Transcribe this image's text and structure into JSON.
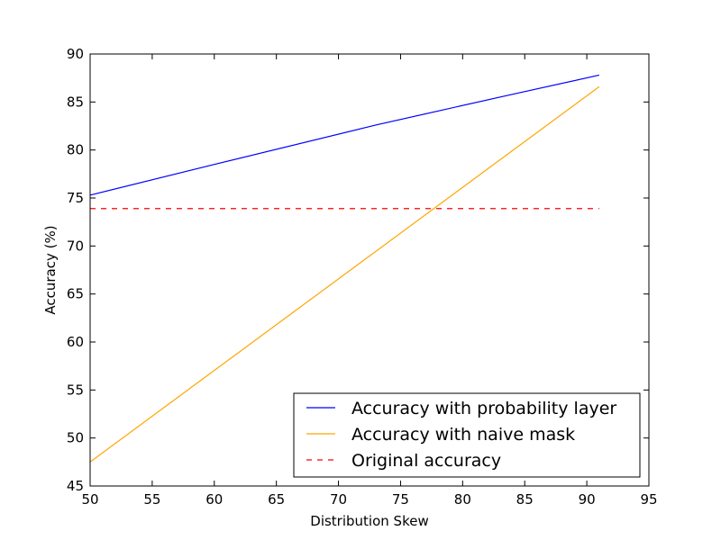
{
  "chart_data": {
    "type": "line",
    "xlabel": "Distribution Skew",
    "ylabel": "Accuracy (%)",
    "xlim": [
      50,
      95
    ],
    "ylim": [
      45,
      90
    ],
    "xticks": [
      50,
      55,
      60,
      65,
      70,
      75,
      80,
      85,
      90,
      95
    ],
    "yticks": [
      45,
      50,
      55,
      60,
      65,
      70,
      75,
      80,
      85,
      90
    ],
    "grid": false,
    "legend_position": "lower-right",
    "series": [
      {
        "name": "Accuracy with probability layer",
        "color": "#0000ff",
        "style": "solid",
        "x": [
          50,
          60,
          73,
          84,
          91
        ],
        "y": [
          75.3,
          78.5,
          82.6,
          85.8,
          87.8
        ]
      },
      {
        "name": "Accuracy with naive mask",
        "color": "#ffa500",
        "style": "solid",
        "x": [
          50,
          91
        ],
        "y": [
          47.5,
          86.6
        ]
      },
      {
        "name": "Original accuracy",
        "color": "#ff0000",
        "style": "dashed",
        "x": [
          50,
          91
        ],
        "y": [
          73.9,
          73.9
        ]
      }
    ]
  }
}
